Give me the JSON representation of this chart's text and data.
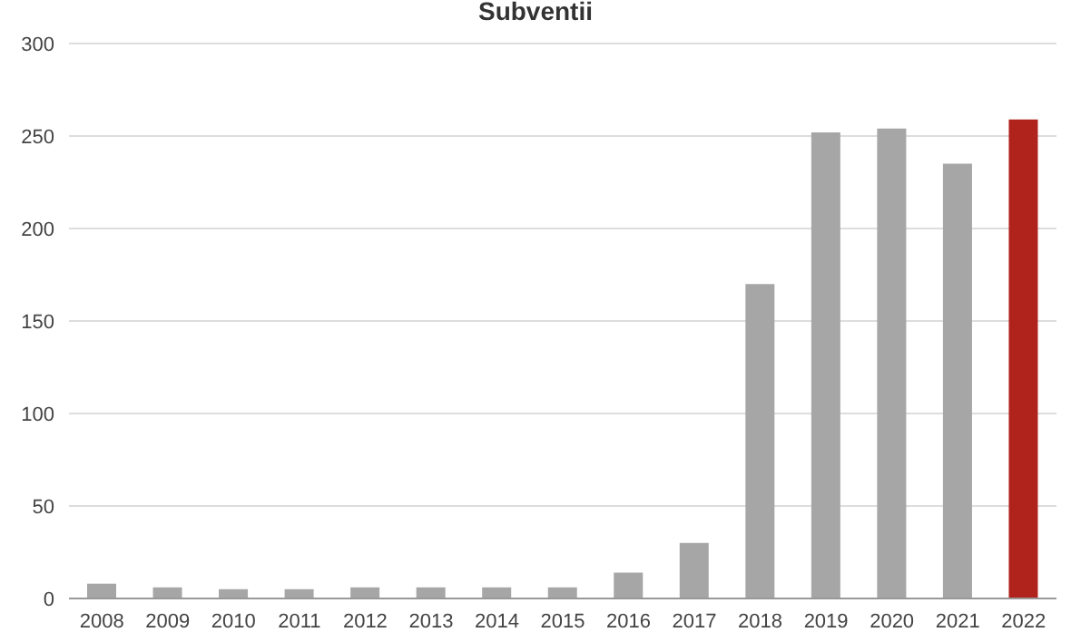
{
  "chart_data": {
    "type": "bar",
    "title": "Subventii",
    "categories": [
      "2008",
      "2009",
      "2010",
      "2011",
      "2012",
      "2013",
      "2014",
      "2015",
      "2016",
      "2017",
      "2018",
      "2019",
      "2020",
      "2021",
      "2022"
    ],
    "values": [
      8,
      6,
      5,
      5,
      6,
      6,
      6,
      6,
      14,
      30,
      170,
      252,
      254,
      235,
      259
    ],
    "colors": [
      "#a6a6a6",
      "#a6a6a6",
      "#a6a6a6",
      "#a6a6a6",
      "#a6a6a6",
      "#a6a6a6",
      "#a6a6a6",
      "#a6a6a6",
      "#a6a6a6",
      "#a6a6a6",
      "#a6a6a6",
      "#a6a6a6",
      "#a6a6a6",
      "#a6a6a6",
      "#b0221c"
    ],
    "ylim": [
      0,
      300
    ],
    "yticks": [
      0,
      50,
      100,
      150,
      200,
      250,
      300
    ],
    "grid": "y"
  }
}
